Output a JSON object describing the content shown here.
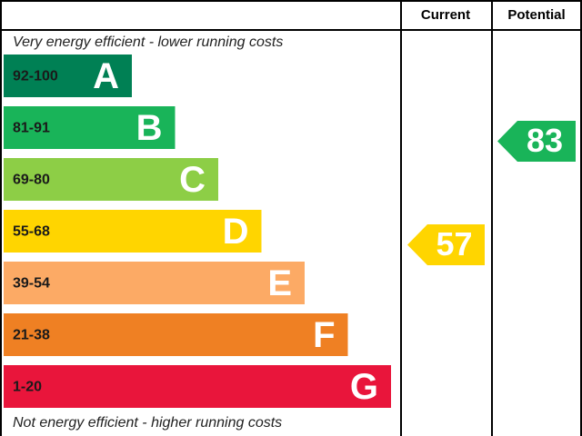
{
  "header": {
    "current": "Current",
    "potential": "Potential"
  },
  "top_note": "Very energy efficient - lower running costs",
  "bottom_note": "Not energy efficient - higher running costs",
  "bands": [
    {
      "range": "92-100",
      "letter": "A",
      "color": "#008054"
    },
    {
      "range": "81-91",
      "letter": "B",
      "color": "#19b459"
    },
    {
      "range": "69-80",
      "letter": "C",
      "color": "#8dce46"
    },
    {
      "range": "55-68",
      "letter": "D",
      "color": "#ffd500"
    },
    {
      "range": "39-54",
      "letter": "E",
      "color": "#fcaa65"
    },
    {
      "range": "21-38",
      "letter": "F",
      "color": "#ef8023"
    },
    {
      "range": "1-20",
      "letter": "G",
      "color": "#e9153b"
    }
  ],
  "current": {
    "value": "57",
    "color": "#ffd500"
  },
  "potential": {
    "value": "83",
    "color": "#19b459"
  }
}
